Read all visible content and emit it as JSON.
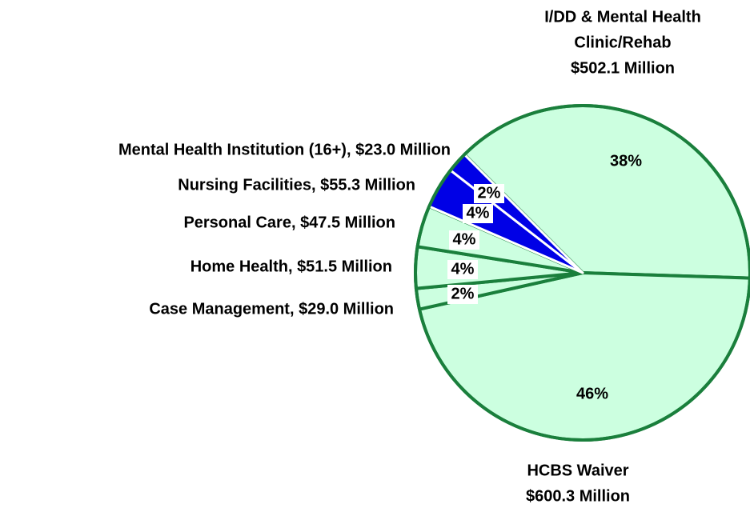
{
  "chart_data": {
    "type": "pie",
    "categories": [
      [
        "I/DD & Mental Health",
        "Clinic/Rehab",
        "$502.1 Million"
      ],
      [
        "HCBS Waiver",
        "$600.3 Million"
      ],
      [
        "Case Management, $29.0 Million"
      ],
      [
        "Home Health, $51.5 Million"
      ],
      [
        "Personal Care, $47.5 Million"
      ],
      [
        "Nursing Facilities, $55.3 Million"
      ],
      [
        "Mental Health Institution (16+), $23.0 Million"
      ]
    ],
    "values": [
      38,
      46,
      2,
      4,
      4,
      4,
      2
    ],
    "value_labels": [
      "38%",
      "46%",
      "2%",
      "4%",
      "4%",
      "4%",
      "2%"
    ],
    "colors": [
      "#ccffe0",
      "#ccffe0",
      "#ccffe0",
      "#ccffe0",
      "#ccffe0",
      "#0000e6",
      "#0000e6"
    ],
    "edge_color": "#1a7f3c"
  }
}
